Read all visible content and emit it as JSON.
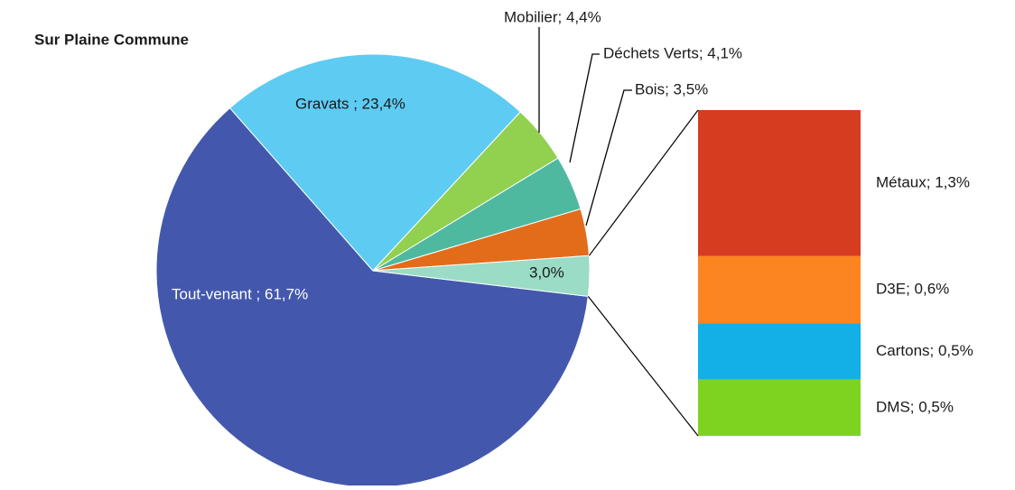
{
  "chart_data": {
    "type": "pie-of-bar",
    "title": "Sur Plaine Commune",
    "values": [
      61.7,
      23.4,
      4.4,
      4.1,
      3.5,
      3.0
    ],
    "value_labels": [
      "Tout-venant ; 61,7%",
      "Gravats ; 23,4%",
      "Mobilier; 4,4%",
      "Déchets Verts; 4,1%",
      "Bois; 3,5%",
      "3,0%"
    ],
    "colors": [
      "#4358ad",
      "#5ecbf2",
      "#92d050",
      "#4fb9a0",
      "#e36c1b",
      "#9adcc6"
    ],
    "bar_values": [
      1.3,
      0.6,
      0.5,
      0.5
    ],
    "bar_value_labels": [
      "Métaux; 1,3%",
      "D3E; 0,6%",
      "Cartons; 0,5%",
      "DMS; 0,5%"
    ],
    "bar_colors": [
      "#d63c20",
      "#fc8421",
      "#12b0e6",
      "#7ed321"
    ]
  }
}
